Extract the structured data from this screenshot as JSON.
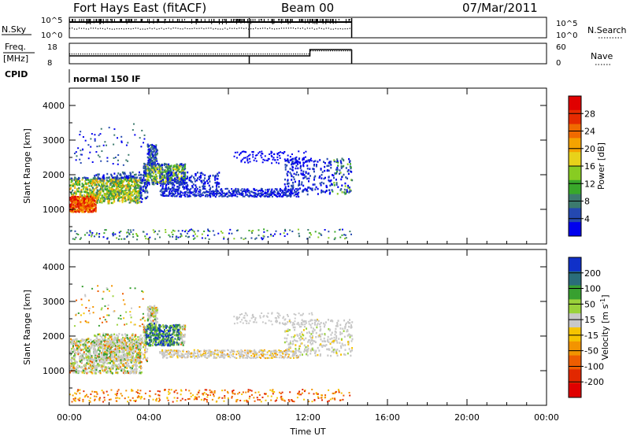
{
  "header": {
    "radar": "Fort Hays East (fitACF)",
    "beam": "Beam 00",
    "date": "07/Mar/2011"
  },
  "param_panels": {
    "sky_label": "N.Sky",
    "sky_ticks": [
      "10^5",
      "10^0"
    ],
    "search_label": "N.Search",
    "search_ticks": [
      "10^5",
      "10^0"
    ],
    "freq_label_1": "Freq.",
    "freq_label_2": "[MHz]",
    "freq_ticks": [
      "18",
      "8"
    ],
    "nave_label": "Nave",
    "nave_ticks": [
      "60",
      "0"
    ],
    "cpid_label": "CPID",
    "cpid_text": "normal 150 IF"
  },
  "chart_data": [
    {
      "type": "heatmap",
      "name": "power",
      "ylabel": "Slant Range [km]",
      "y_ticks": [
        "4000",
        "3000",
        "2000",
        "1000"
      ],
      "ylim": [
        0,
        4500
      ],
      "colorbar": {
        "label": "Power [dB]",
        "ticks": [
          "28",
          "24",
          "20",
          "16",
          "12",
          "8",
          "4"
        ],
        "colors": [
          "#0000ee",
          "#2448b0",
          "#3c7a6e",
          "#39a82a",
          "#88cc22",
          "#e8d21a",
          "#f5a300",
          "#f06a00",
          "#e62b00",
          "#e00000"
        ]
      },
      "regions": [
        {
          "t": [
            0.0,
            1.2
          ],
          "r": [
            1000,
            1350
          ],
          "level": "high"
        },
        {
          "t": [
            0.0,
            4.0
          ],
          "r": [
            1000,
            1900
          ],
          "level": "mid"
        },
        {
          "t": [
            3.6,
            5.6
          ],
          "r": [
            1800,
            2300
          ],
          "level": "mid"
        },
        {
          "t": [
            4.0,
            11.5
          ],
          "r": [
            1400,
            1600
          ],
          "level": "low"
        },
        {
          "t": [
            10.5,
            14.2
          ],
          "r": [
            1500,
            2500
          ],
          "level": "low"
        },
        {
          "t": [
            0.0,
            14.2
          ],
          "r": [
            150,
            450
          ],
          "level": "sparse"
        }
      ]
    },
    {
      "type": "heatmap",
      "name": "velocity",
      "xlabel": "Time UT",
      "ylabel": "Slant Range [km]",
      "x_ticks": [
        "00:00",
        "04:00",
        "08:00",
        "12:00",
        "16:00",
        "20:00",
        "00:00"
      ],
      "y_ticks": [
        "4000",
        "3000",
        "2000",
        "1000"
      ],
      "ylim": [
        0,
        4500
      ],
      "xlim": [
        0,
        24
      ],
      "colorbar": {
        "label": "Velocity [m s^-1]",
        "ticks": [
          "200",
          "100",
          "50",
          "15",
          "-15",
          "-50",
          "-100",
          "-200"
        ],
        "colors": [
          "#1030c8",
          "#2a6d7a",
          "#38a030",
          "#9ad23a",
          "#c8c8c8",
          "#f5c400",
          "#f39400",
          "#ee5d00",
          "#e22800",
          "#e00000"
        ]
      }
    }
  ]
}
